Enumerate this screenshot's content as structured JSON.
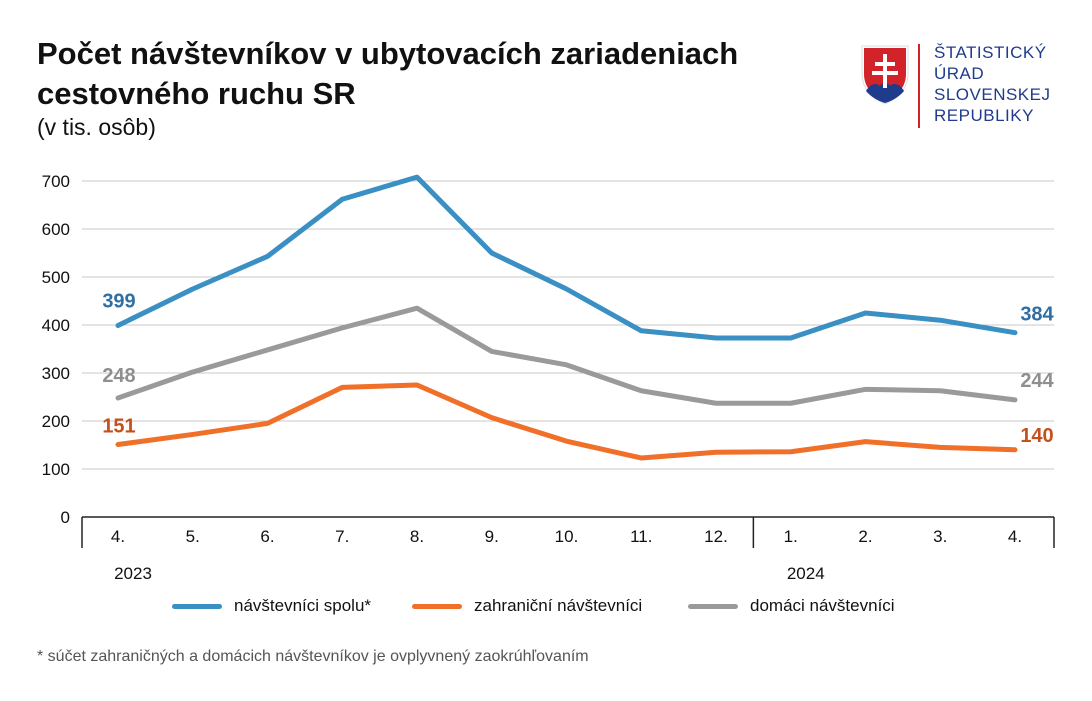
{
  "header": {
    "title": "Počet návštevníkov v ubytovacích zariadeniach cestovného ruchu SR",
    "subtitle": "(v tis. osôb)"
  },
  "logo": {
    "lines": [
      "ŠTATISTICKÝ",
      "ÚRAD",
      "SLOVENSKEJ",
      "REPUBLIKY"
    ],
    "icon": "slovak-coat-of-arms-icon"
  },
  "footnote": "* súčet zahraničných a domácich návštevníkov je ovplyvnený zaokrúhľovaním",
  "colors": {
    "total": "#3a8fc3",
    "foreign": "#f07029",
    "domestic": "#9a9a9a",
    "grid": "#c8c8c8",
    "label_total": "#2f6fa3",
    "label_foreign": "#c5501c",
    "label_domestic": "#8f8f8f"
  },
  "chart_data": {
    "type": "line",
    "categories": [
      "4.",
      "5.",
      "6.",
      "7.",
      "8.",
      "9.",
      "10.",
      "11.",
      "12.",
      "1.",
      "2.",
      "3.",
      "4."
    ],
    "year_labels": [
      {
        "label": "2023",
        "index": 0
      },
      {
        "label": "2024",
        "index": 9
      }
    ],
    "ylim": [
      0,
      700
    ],
    "yticks": [
      0,
      100,
      200,
      300,
      400,
      500,
      600,
      700
    ],
    "grid": true,
    "legend_position": "bottom",
    "series": [
      {
        "key": "total",
        "name": "návštevníci spolu*",
        "values": [
          399,
          475,
          543,
          662,
          708,
          550,
          475,
          388,
          373,
          373,
          425,
          410,
          384
        ],
        "first_label": "399",
        "last_label": "384"
      },
      {
        "key": "foreign",
        "name": "zahraniční návštevníci",
        "values": [
          151,
          172,
          195,
          270,
          275,
          207,
          158,
          123,
          135,
          136,
          157,
          145,
          140
        ],
        "first_label": "151",
        "last_label": "140"
      },
      {
        "key": "domestic",
        "name": "domáci návštevníci",
        "values": [
          248,
          302,
          348,
          394,
          435,
          345,
          317,
          263,
          237,
          237,
          266,
          263,
          244
        ],
        "first_label": "248",
        "last_label": "244"
      }
    ]
  }
}
